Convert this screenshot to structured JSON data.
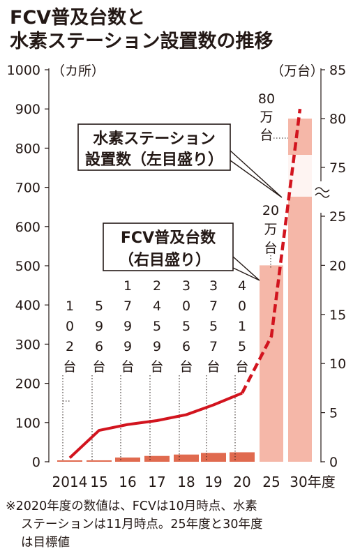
{
  "title_line1": "FCV普及台数と",
  "title_line2": "水素ステーション設置数の推移",
  "left_unit": "（カ所）",
  "right_unit": "（万台）",
  "note_line1": "※2020年度の数値は、FCVは10月時点、水素",
  "note_line2": "ステーションは11月時点。25年度と30年度",
  "note_line3": "は目標値",
  "callout_station_line1": "水素ステーション",
  "callout_station_line2": "設置数（左目盛り）",
  "callout_fcv_line1": "FCV普及台数",
  "callout_fcv_line2": "（右目盛り）",
  "label_2025": [
    "20",
    "万",
    "台"
  ],
  "label_2030": [
    "80",
    "万",
    "台"
  ],
  "colors": {
    "line": "#d2141e",
    "bar": "#f5b7a8",
    "bar_small": "#e06a4f",
    "text": "#231815"
  },
  "chart_data": {
    "type": "bar+line",
    "categories": [
      "2014",
      "15",
      "16",
      "17",
      "18",
      "19",
      "20",
      "25",
      "30年度"
    ],
    "left_axis": {
      "ticks": [
        "1000",
        "900",
        "800",
        "700",
        "600",
        "500",
        "400",
        "300",
        "200",
        "100",
        "0"
      ],
      "ylim": [
        0,
        1000
      ]
    },
    "right_axis": {
      "ticks_lower": [
        "0",
        "5",
        "10",
        "15",
        "20",
        "25"
      ],
      "ticks_upper": [
        "75",
        "80",
        "85"
      ],
      "broken_between": [
        25,
        75
      ]
    },
    "series": [
      {
        "name": "水素ステーション設置数（左目盛り）",
        "type": "line",
        "axis": "left",
        "values": [
          10,
          80,
          95,
          105,
          120,
          145,
          175,
          320,
          900
        ],
        "target_from_index": 6
      },
      {
        "name": "FCV普及台数（右目盛り）",
        "type": "bar",
        "axis": "right",
        "values": [
          102,
          596,
          1799,
          2459,
          3056,
          3757,
          4015,
          200000,
          800000
        ],
        "value_labels": [
          [
            "1",
            "0",
            "2",
            "台"
          ],
          [
            "5",
            "9",
            "6",
            "台"
          ],
          [
            "1",
            "7",
            "9",
            "9",
            "台"
          ],
          [
            "2",
            "4",
            "5",
            "9",
            "台"
          ],
          [
            "3",
            "0",
            "5",
            "6",
            "台"
          ],
          [
            "3",
            "7",
            "5",
            "7",
            "台"
          ],
          [
            "4",
            "0",
            "1",
            "5",
            "台"
          ]
        ]
      }
    ]
  }
}
